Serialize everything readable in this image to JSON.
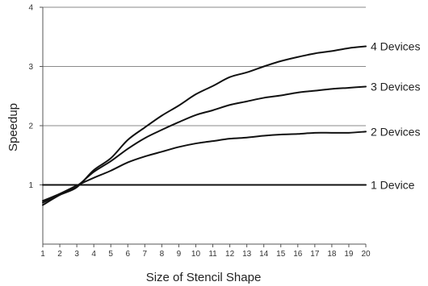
{
  "chart_data": {
    "type": "line",
    "title": "",
    "xlabel": "Size of Stencil Shape",
    "ylabel": "Speedup",
    "xlim": [
      1,
      20
    ],
    "ylim": [
      0,
      4
    ],
    "x_ticks": [
      "1",
      "2",
      "3",
      "4",
      "5",
      "6",
      "7",
      "8",
      "9",
      "10",
      "11",
      "12",
      "13",
      "14",
      "15",
      "16",
      "17",
      "18",
      "19",
      "20"
    ],
    "y_ticks": [
      "1",
      "2",
      "3",
      "4"
    ],
    "grid": "horizontal",
    "legend": "series labels at right end of lines",
    "x": [
      1,
      2,
      3,
      4,
      5,
      6,
      7,
      8,
      9,
      10,
      11,
      12,
      13,
      14,
      15,
      16,
      17,
      18,
      19,
      20
    ],
    "series": [
      {
        "name": "1 Device",
        "values": [
          1.0,
          1.0,
          1.0,
          1.0,
          1.0,
          1.0,
          1.0,
          1.0,
          1.0,
          1.0,
          1.0,
          1.0,
          1.0,
          1.0,
          1.0,
          1.0,
          1.0,
          1.0,
          1.0,
          1.0
        ]
      },
      {
        "name": "2 Devices",
        "values": [
          0.73,
          0.85,
          0.99,
          1.12,
          1.24,
          1.38,
          1.48,
          1.56,
          1.64,
          1.7,
          1.74,
          1.78,
          1.8,
          1.83,
          1.85,
          1.86,
          1.88,
          1.88,
          1.88,
          1.9
        ]
      },
      {
        "name": "3 Devices",
        "values": [
          0.7,
          0.84,
          0.98,
          1.22,
          1.4,
          1.61,
          1.79,
          1.93,
          2.06,
          2.18,
          2.26,
          2.35,
          2.41,
          2.47,
          2.51,
          2.56,
          2.59,
          2.62,
          2.64,
          2.66
        ]
      },
      {
        "name": "4 Devices",
        "values": [
          0.66,
          0.83,
          0.96,
          1.25,
          1.45,
          1.76,
          1.97,
          2.17,
          2.34,
          2.53,
          2.67,
          2.82,
          2.9,
          3.0,
          3.09,
          3.16,
          3.22,
          3.26,
          3.31,
          3.34
        ]
      }
    ],
    "colors": {
      "line": "#111111",
      "grid": "#8a8a8a",
      "axis": "#555555"
    }
  }
}
